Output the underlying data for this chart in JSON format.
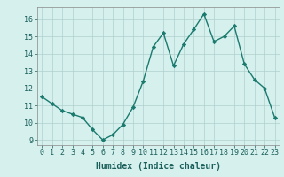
{
  "x": [
    0,
    1,
    2,
    3,
    4,
    5,
    6,
    7,
    8,
    9,
    10,
    11,
    12,
    13,
    14,
    15,
    16,
    17,
    18,
    19,
    20,
    21,
    22,
    23
  ],
  "y": [
    11.5,
    11.1,
    10.7,
    10.5,
    10.3,
    9.6,
    9.0,
    9.3,
    9.9,
    10.9,
    12.4,
    14.4,
    15.2,
    13.3,
    14.55,
    15.4,
    16.3,
    14.7,
    15.0,
    15.6,
    13.4,
    12.5,
    12.0,
    10.3
  ],
  "line_color": "#1a7a6e",
  "marker": "D",
  "marker_size": 2.2,
  "bg_color": "#d6f0ee",
  "grid_color": "#b0cfcc",
  "xlabel": "Humidex (Indice chaleur)",
  "ylim": [
    8.7,
    16.7
  ],
  "xlim": [
    -0.5,
    23.5
  ],
  "yticks": [
    9,
    10,
    11,
    12,
    13,
    14,
    15,
    16
  ],
  "xticks": [
    0,
    1,
    2,
    3,
    4,
    5,
    6,
    7,
    8,
    9,
    10,
    11,
    12,
    13,
    14,
    15,
    16,
    17,
    18,
    19,
    20,
    21,
    22,
    23
  ],
  "label_fontsize": 7,
  "tick_fontsize": 6,
  "line_width": 1.0
}
